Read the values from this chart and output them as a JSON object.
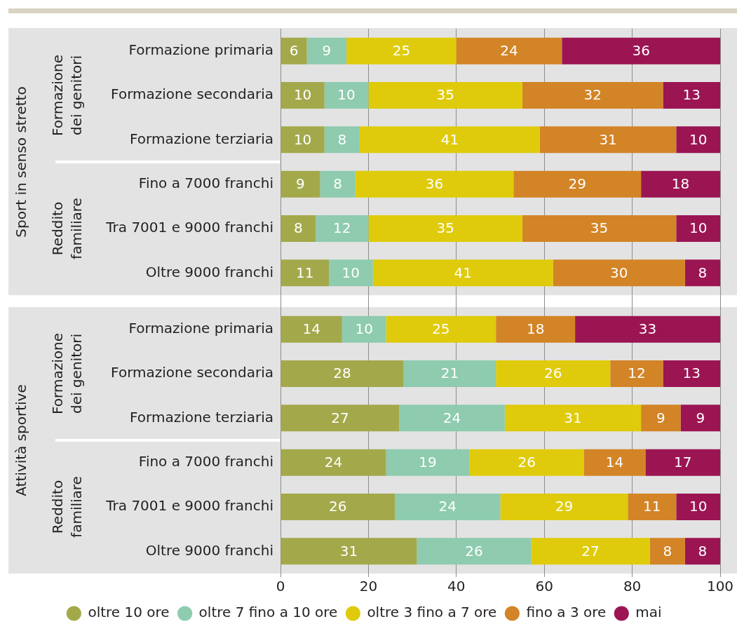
{
  "chart_data": [
    {
      "type": "bar",
      "orientation": "horizontal",
      "stacked": true,
      "ylabel": "Sport in senso stretto",
      "annotations": [
        "Formazione dei genitori",
        "Reddito familiare"
      ],
      "categories": [
        "Formazione primaria",
        "Formazione secondaria",
        "Formazione terziaria",
        "Fino a 7000 franchi",
        "Tra 7001 e 9000 franchi",
        "Oltre 9000 franchi"
      ],
      "series": [
        {
          "color": "#a3a94b",
          "values": [
            6,
            10,
            10,
            9,
            8,
            11
          ]
        },
        {
          "color": "#8ecbaf",
          "values": [
            9,
            10,
            8,
            8,
            12,
            10
          ]
        },
        {
          "color": "#dfcb0b",
          "values": [
            25,
            35,
            41,
            36,
            35,
            41
          ]
        },
        {
          "color": "#d38426",
          "values": [
            24,
            32,
            31,
            29,
            35,
            30
          ]
        },
        {
          "color": "#9b1553",
          "values": [
            36,
            13,
            10,
            18,
            10,
            8
          ]
        }
      ],
      "xlim": [
        0,
        100
      ],
      "xticks": [
        0,
        20,
        40,
        60,
        80,
        100
      ],
      "grid": "x",
      "tick_labels": "y",
      "data_labels": true
    },
    {
      "type": "bar",
      "orientation": "horizontal",
      "stacked": true,
      "ylabel": "Attività sportive",
      "annotations": [
        "Formazione dei genitori",
        "Reddito familiare"
      ],
      "categories": [
        "Formazione primaria",
        "Formazione secondaria",
        "Formazione terziaria",
        "Fino a 7000 franchi",
        "Tra 7001 e 9000 franchi",
        "Oltre 9000 franchi"
      ],
      "series": [
        {
          "name": "oltre 10 ore",
          "color": "#a3a94b",
          "values": [
            14,
            28,
            27,
            24,
            26,
            31
          ]
        },
        {
          "name": "oltre 7 fino a 10 ore",
          "color": "#8ecbaf",
          "values": [
            10,
            21,
            24,
            19,
            24,
            26
          ]
        },
        {
          "name": "oltre 3 fino a 7 ore",
          "color": "#dfcb0b",
          "values": [
            25,
            26,
            31,
            26,
            29,
            27
          ]
        },
        {
          "name": "fino a 3 ore",
          "color": "#d38426",
          "values": [
            18,
            12,
            9,
            14,
            11,
            8
          ]
        },
        {
          "name": "mai",
          "color": "#9b1553",
          "values": [
            33,
            13,
            9,
            17,
            10,
            8
          ]
        }
      ],
      "xlim": [
        0,
        100
      ],
      "xticks": [
        0,
        20,
        40,
        60,
        80,
        100
      ],
      "grid": "x",
      "legend": "bottom",
      "data_labels": true
    }
  ]
}
